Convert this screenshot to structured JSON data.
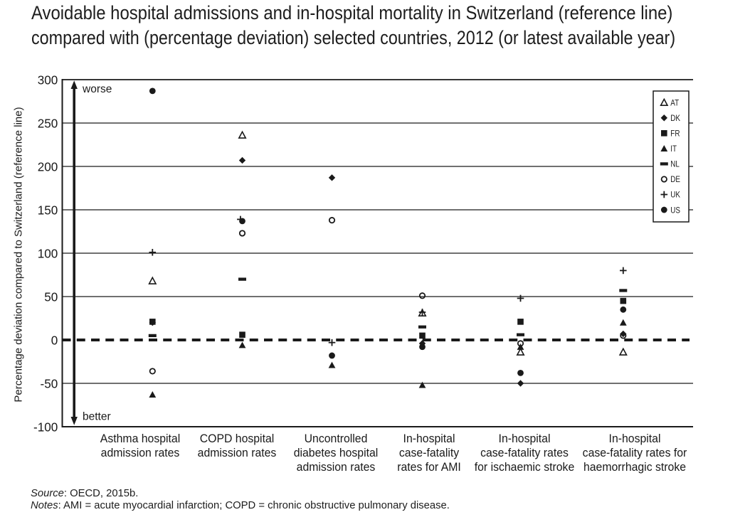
{
  "title": {
    "line1": "Avoidable hospital admissions and in-hospital mortality in Switzerland (reference line)",
    "line2": "compared with (percentage deviation) selected countries, 2012 (or latest available year)"
  },
  "footer": {
    "source_label": "Source",
    "source_rest": ": OECD, 2015b.",
    "notes_label": "Notes",
    "notes_rest": ": AMI = acute myocardial infarction; COPD = chronic obstructive pulmonary disease."
  },
  "colors": {
    "ink": "#1a1a1a",
    "background": "#ffffff"
  },
  "chart_data": {
    "type": "scatter",
    "title": "Avoidable hospital admissions and in-hospital mortality in Switzerland (reference line) compared with (percentage deviation) selected countries, 2012 (or latest available year)",
    "ylabel": "Percentage deviation compared to Switzerland (reference line)",
    "ylim": [
      -100,
      300
    ],
    "yticks": [
      300,
      250,
      200,
      150,
      100,
      50,
      0,
      -50,
      -100
    ],
    "grid": true,
    "legend_position": "upper right",
    "reference_line": {
      "value": 0,
      "style": "dashed",
      "meaning": "Switzerland (reference line)"
    },
    "annotations": {
      "top": "worse",
      "bottom": "better"
    },
    "categories": [
      [
        "Asthma hospital",
        "admission rates"
      ],
      [
        "COPD hospital",
        "admission rates"
      ],
      [
        "Uncontrolled",
        "diabetes hospital",
        "admission rates"
      ],
      [
        "In-hospital",
        "case-fatality",
        "rates for AMI"
      ],
      [
        "In-hospital",
        "case-fatality rates",
        "for ischaemic stroke"
      ],
      [
        "In-hospital",
        "case-fatality rates for",
        "haemorrhagic stroke"
      ]
    ],
    "series": [
      {
        "name": "AT",
        "marker": "triangle-open",
        "values": [
          68,
          236,
          null,
          31,
          -14,
          -14
        ]
      },
      {
        "name": "DK",
        "marker": "diamond-filled",
        "values": [
          20,
          207,
          187,
          -4,
          -50,
          7
        ]
      },
      {
        "name": "FR",
        "marker": "square-filled",
        "values": [
          21,
          6,
          null,
          5,
          21,
          45
        ]
      },
      {
        "name": "IT",
        "marker": "triangle-filled",
        "values": [
          -63,
          -6,
          -29,
          -52,
          -8,
          20
        ]
      },
      {
        "name": "NL",
        "marker": "dash-filled",
        "values": [
          5,
          70,
          null,
          15,
          6,
          57
        ]
      },
      {
        "name": "DE",
        "marker": "circle-open",
        "values": [
          -36,
          123,
          138,
          51,
          -4,
          5
        ]
      },
      {
        "name": "UK",
        "marker": "plus",
        "values": [
          101,
          139,
          -3,
          32,
          48,
          80
        ]
      },
      {
        "name": "US",
        "marker": "circle-filled",
        "values": [
          287,
          137,
          -18,
          -8,
          -38,
          35
        ]
      }
    ]
  }
}
